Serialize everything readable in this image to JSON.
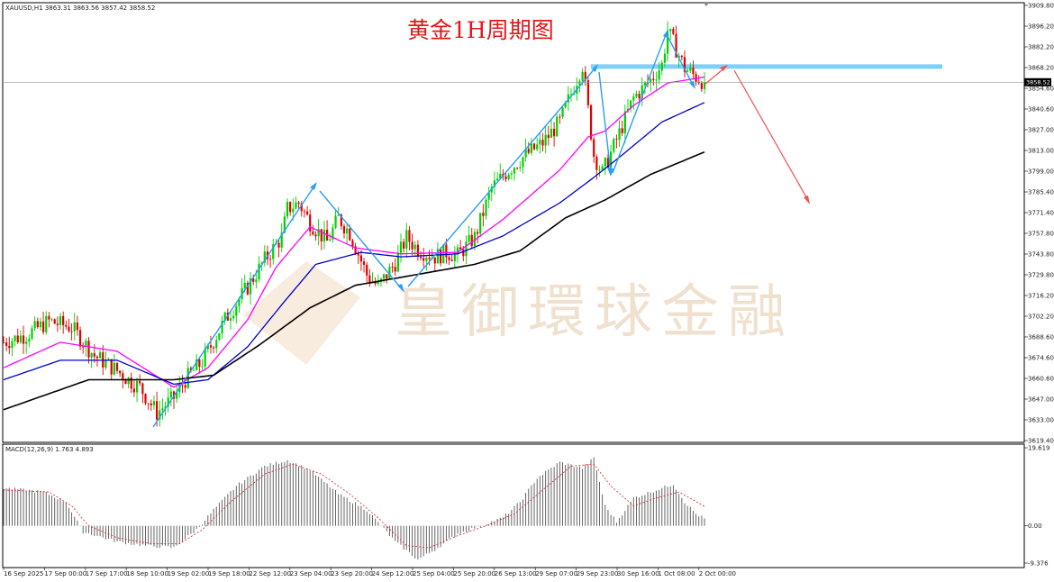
{
  "chart_data": {
    "type": "candlestick",
    "symbol_header": "XAUUSD,H1  3863.31 3863.56 3857.42 3858.52",
    "title": "黄金1H周期图",
    "watermark": "皇御環球金融",
    "current_price_label": "3858.52",
    "current_price": 3858.52,
    "price_axis": {
      "ylim": [
        3619.4,
        3909.8
      ],
      "ticks": [
        "3909.80",
        "3896.20",
        "3882.20",
        "3868.20",
        "3854.60",
        "3840.60",
        "3827.00",
        "3813.00",
        "3799.00",
        "3785.40",
        "3771.40",
        "3757.80",
        "3743.80",
        "3729.80",
        "3716.20",
        "3702.20",
        "3688.60",
        "3674.60",
        "3660.60",
        "3647.00",
        "3633.00",
        "3619.40"
      ]
    },
    "time_axis": {
      "labels": [
        "16 Sep 2025",
        "17 Sep 00:00",
        "17 Sep 17:00",
        "18 Sep 10:00",
        "19 Sep 02:00",
        "19 Sep 18:00",
        "22 Sep 12:00",
        "23 Sep 04:00",
        "23 Sep 20:00",
        "24 Sep 12:00",
        "25 Sep 04:00",
        "25 Sep 20:00",
        "26 Sep 13:00",
        "29 Sep 07:00",
        "29 Sep 23:00",
        "30 Sep 16:00",
        "1 Oct 08:00",
        "2 Oct 00:00"
      ]
    },
    "price_path": [
      [
        0,
        3685
      ],
      [
        8,
        3690
      ],
      [
        16,
        3699
      ],
      [
        24,
        3695
      ],
      [
        32,
        3676
      ],
      [
        40,
        3666
      ],
      [
        44,
        3660
      ],
      [
        48,
        3655
      ],
      [
        54,
        3638
      ],
      [
        60,
        3648
      ],
      [
        64,
        3660
      ],
      [
        70,
        3672
      ],
      [
        78,
        3700
      ],
      [
        86,
        3722
      ],
      [
        92,
        3740
      ],
      [
        98,
        3755
      ],
      [
        100,
        3774
      ],
      [
        104,
        3778
      ],
      [
        108,
        3765
      ],
      [
        114,
        3752
      ],
      [
        118,
        3768
      ],
      [
        122,
        3758
      ],
      [
        128,
        3730
      ],
      [
        132,
        3722
      ],
      [
        138,
        3738
      ],
      [
        142,
        3755
      ],
      [
        146,
        3747
      ],
      [
        152,
        3742
      ],
      [
        156,
        3745
      ],
      [
        160,
        3743
      ],
      [
        166,
        3755
      ],
      [
        172,
        3788
      ],
      [
        178,
        3800
      ],
      [
        184,
        3810
      ],
      [
        190,
        3818
      ],
      [
        196,
        3832
      ],
      [
        204,
        3870
      ],
      [
        208,
        3810
      ],
      [
        211,
        3798
      ],
      [
        216,
        3820
      ],
      [
        222,
        3848
      ],
      [
        228,
        3860
      ],
      [
        232,
        3870
      ],
      [
        234,
        3893
      ],
      [
        236,
        3885
      ],
      [
        240,
        3868
      ],
      [
        244,
        3862
      ],
      [
        247,
        3858.52
      ]
    ],
    "moving_averages": [
      {
        "color": "#ff00ff",
        "points": [
          [
            0,
            3668
          ],
          [
            20,
            3685
          ],
          [
            40,
            3679
          ],
          [
            60,
            3655
          ],
          [
            72,
            3668
          ],
          [
            86,
            3700
          ],
          [
            96,
            3735
          ],
          [
            108,
            3762
          ],
          [
            124,
            3748
          ],
          [
            140,
            3744
          ],
          [
            160,
            3745
          ],
          [
            176,
            3767
          ],
          [
            196,
            3800
          ],
          [
            206,
            3822
          ],
          [
            212,
            3826
          ],
          [
            222,
            3843
          ],
          [
            234,
            3858
          ],
          [
            247,
            3862
          ]
        ]
      },
      {
        "color": "#0000cc",
        "points": [
          [
            0,
            3660
          ],
          [
            20,
            3673
          ],
          [
            40,
            3673
          ],
          [
            60,
            3657
          ],
          [
            72,
            3660
          ],
          [
            86,
            3682
          ],
          [
            98,
            3710
          ],
          [
            110,
            3737
          ],
          [
            126,
            3745
          ],
          [
            140,
            3742
          ],
          [
            160,
            3744
          ],
          [
            176,
            3756
          ],
          [
            196,
            3778
          ],
          [
            208,
            3795
          ],
          [
            218,
            3810
          ],
          [
            232,
            3832
          ],
          [
            247,
            3845
          ]
        ]
      },
      {
        "color": "#000000",
        "points": [
          [
            0,
            3640
          ],
          [
            30,
            3660
          ],
          [
            60,
            3660
          ],
          [
            74,
            3663
          ],
          [
            90,
            3683
          ],
          [
            108,
            3708
          ],
          [
            124,
            3723
          ],
          [
            148,
            3731
          ],
          [
            166,
            3737
          ],
          [
            182,
            3746
          ],
          [
            198,
            3768
          ],
          [
            212,
            3780
          ],
          [
            228,
            3797
          ],
          [
            247,
            3812
          ]
        ]
      }
    ],
    "macd": {
      "label": "MACD(12,26,9) 1.763 4.893",
      "values": "1.763 4.893",
      "ylim": [
        -9.376,
        19.619
      ],
      "ticks": [
        "19.619",
        "0.00",
        "-9.376"
      ],
      "histogram_path": [
        [
          0,
          9.5
        ],
        [
          14,
          8.5
        ],
        [
          22,
          6
        ],
        [
          28,
          -1.5
        ],
        [
          40,
          -4
        ],
        [
          50,
          -5
        ],
        [
          60,
          -5.5
        ],
        [
          68,
          -1
        ],
        [
          74,
          4
        ],
        [
          82,
          10
        ],
        [
          92,
          15
        ],
        [
          100,
          16.5
        ],
        [
          108,
          14
        ],
        [
          118,
          8
        ],
        [
          128,
          4
        ],
        [
          138,
          -4
        ],
        [
          146,
          -8.5
        ],
        [
          152,
          -6
        ],
        [
          160,
          -2
        ],
        [
          168,
          0
        ],
        [
          176,
          2
        ],
        [
          182,
          6
        ],
        [
          188,
          12
        ],
        [
          196,
          16
        ],
        [
          204,
          14.5
        ],
        [
          208,
          17
        ],
        [
          212,
          5
        ],
        [
          216,
          1
        ],
        [
          222,
          7
        ],
        [
          230,
          9
        ],
        [
          236,
          10.5
        ],
        [
          240,
          6
        ],
        [
          244,
          3
        ],
        [
          247,
          1.8
        ]
      ],
      "signal_path": [
        [
          0,
          9
        ],
        [
          16,
          8.5
        ],
        [
          24,
          5
        ],
        [
          30,
          0
        ],
        [
          40,
          -3
        ],
        [
          52,
          -4.5
        ],
        [
          62,
          -4.5
        ],
        [
          70,
          -1
        ],
        [
          80,
          6
        ],
        [
          92,
          13
        ],
        [
          102,
          15.5
        ],
        [
          112,
          13
        ],
        [
          122,
          8
        ],
        [
          132,
          2
        ],
        [
          142,
          -5
        ],
        [
          150,
          -5.5
        ],
        [
          160,
          -2.5
        ],
        [
          170,
          0
        ],
        [
          180,
          3
        ],
        [
          190,
          9
        ],
        [
          200,
          15
        ],
        [
          208,
          15.5
        ],
        [
          214,
          10
        ],
        [
          222,
          5
        ],
        [
          230,
          7
        ],
        [
          238,
          8.5
        ],
        [
          247,
          4.9
        ]
      ]
    },
    "annotations": {
      "resistance_price": 3869,
      "down_target": [
        256,
        3777
      ]
    }
  }
}
